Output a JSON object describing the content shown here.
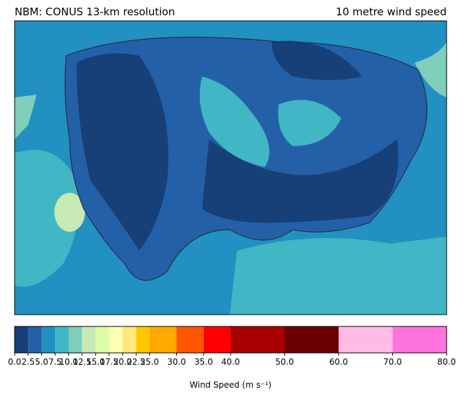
{
  "map": {
    "title_left": "NBM: CONUS 13-km resolution",
    "title_right": "10 metre wind speed"
  },
  "colorbar": {
    "label": "Wind Speed (m s⁻¹)",
    "xlim": [
      0,
      80
    ],
    "bounds": [
      {
        "value": 0,
        "label": "0.0"
      },
      {
        "value": 2.5,
        "label": "2.5"
      },
      {
        "value": 5,
        "label": "5.0"
      },
      {
        "value": 7.5,
        "label": "7.5"
      },
      {
        "value": 10,
        "label": "10.0"
      },
      {
        "value": 12.5,
        "label": "12.5"
      },
      {
        "value": 15,
        "label": "15.0"
      },
      {
        "value": 17.5,
        "label": "17.5"
      },
      {
        "value": 20,
        "label": "20.0"
      },
      {
        "value": 22.5,
        "label": "22.5"
      },
      {
        "value": 25,
        "label": "25.0"
      },
      {
        "value": 30,
        "label": "30.0"
      },
      {
        "value": 35,
        "label": "35.0"
      },
      {
        "value": 40,
        "label": "40.0"
      },
      {
        "value": 50,
        "label": "50.0"
      },
      {
        "value": 60,
        "label": "60.0"
      },
      {
        "value": 70,
        "label": "70.0"
      },
      {
        "value": 80,
        "label": "80.0"
      }
    ],
    "colors": [
      "#173f78",
      "#2460a7",
      "#2290c0",
      "#41b6c4",
      "#7fcdbb",
      "#c7e9b4",
      "#dcfca6",
      "#ffffb4",
      "#fee880",
      "#fec700",
      "#ffa800",
      "#ff5500",
      "#ff0000",
      "#a80000",
      "#6b0000",
      "#ffbbe6",
      "#ff73df"
    ]
  }
}
